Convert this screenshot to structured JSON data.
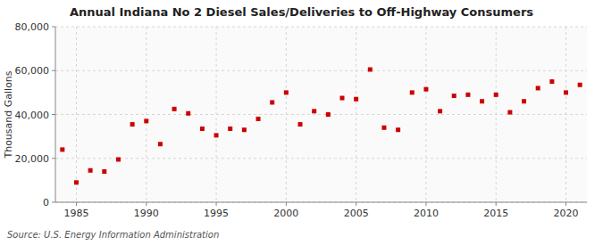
{
  "chart_data": {
    "type": "scatter",
    "title": "Annual Indiana No 2 Diesel Sales/Deliveries to Off-Highway Consumers",
    "ylabel": "Thousand Gallons",
    "source": "Source: U.S. Energy Information Administration",
    "color": "#cc0000",
    "marker": "square",
    "grid": true,
    "xlim": [
      1983.5,
      2021.5
    ],
    "ylim": [
      0,
      80000
    ],
    "xticks": [
      1985,
      1990,
      1995,
      2000,
      2005,
      2010,
      2015,
      2020
    ],
    "yticks": [
      0,
      {
        "value": 20000,
        "label": "20,000"
      },
      {
        "value": 40000,
        "label": "40,000"
      },
      {
        "value": 60000,
        "label": "60,000"
      },
      {
        "value": 80000,
        "label": "80,000"
      }
    ],
    "x": [
      1984,
      1985,
      1986,
      1987,
      1988,
      1989,
      1990,
      1991,
      1992,
      1993,
      1994,
      1995,
      1996,
      1997,
      1998,
      1999,
      2000,
      2001,
      2002,
      2003,
      2004,
      2005,
      2006,
      2007,
      2008,
      2009,
      2010,
      2011,
      2012,
      2013,
      2014,
      2015,
      2016,
      2017,
      2018,
      2019,
      2020,
      2021
    ],
    "values": [
      24000,
      9000,
      14500,
      14000,
      19500,
      35500,
      37000,
      26500,
      42500,
      40500,
      33500,
      30500,
      33500,
      33000,
      38000,
      45500,
      50000,
      35500,
      41500,
      40000,
      47500,
      47000,
      60500,
      34000,
      33000,
      50000,
      51500,
      41500,
      48500,
      49000,
      46000,
      49000,
      41000,
      46000,
      52000,
      55000,
      50000,
      53500
    ]
  }
}
